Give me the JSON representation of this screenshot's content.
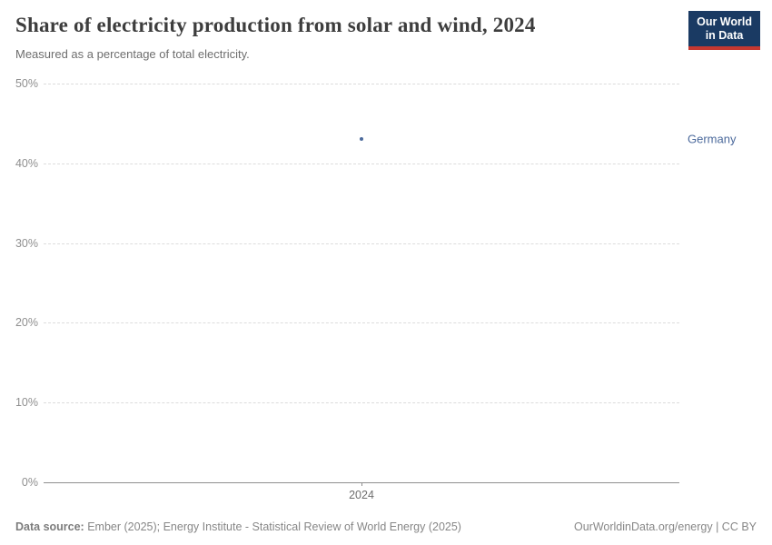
{
  "header": {
    "title": "Share of electricity production from solar and wind, 2024",
    "subtitle": "Measured as a percentage of total electricity.",
    "logo": {
      "line1": "Our World",
      "line2": "in Data",
      "bg_color": "#1a3a63",
      "accent_color": "#c63831"
    }
  },
  "chart_data": {
    "type": "scatter",
    "title": "Share of electricity production from solar and wind, 2024",
    "subtitle": "Measured as a percentage of total electricity.",
    "xlabel": "",
    "ylabel": "",
    "x": [
      "2024"
    ],
    "x_tick_labels": [
      "2024"
    ],
    "series": [
      {
        "name": "Germany",
        "values": [
          43
        ],
        "unit": "%",
        "color": "#4c6a9c"
      }
    ],
    "y_ticks": [
      0,
      10,
      20,
      30,
      40,
      50
    ],
    "y_tick_labels": [
      "0%",
      "10%",
      "20%",
      "30%",
      "40%",
      "50%"
    ],
    "ylim": [
      0,
      50
    ],
    "grid": "horizontal dashed",
    "legend_position": "right-of-point"
  },
  "footer": {
    "source_label": "Data source:",
    "source_text": " Ember (2025); Energy Institute - Statistical Review of World Energy (2025)",
    "license_text": "OurWorldinData.org/energy | CC BY"
  }
}
